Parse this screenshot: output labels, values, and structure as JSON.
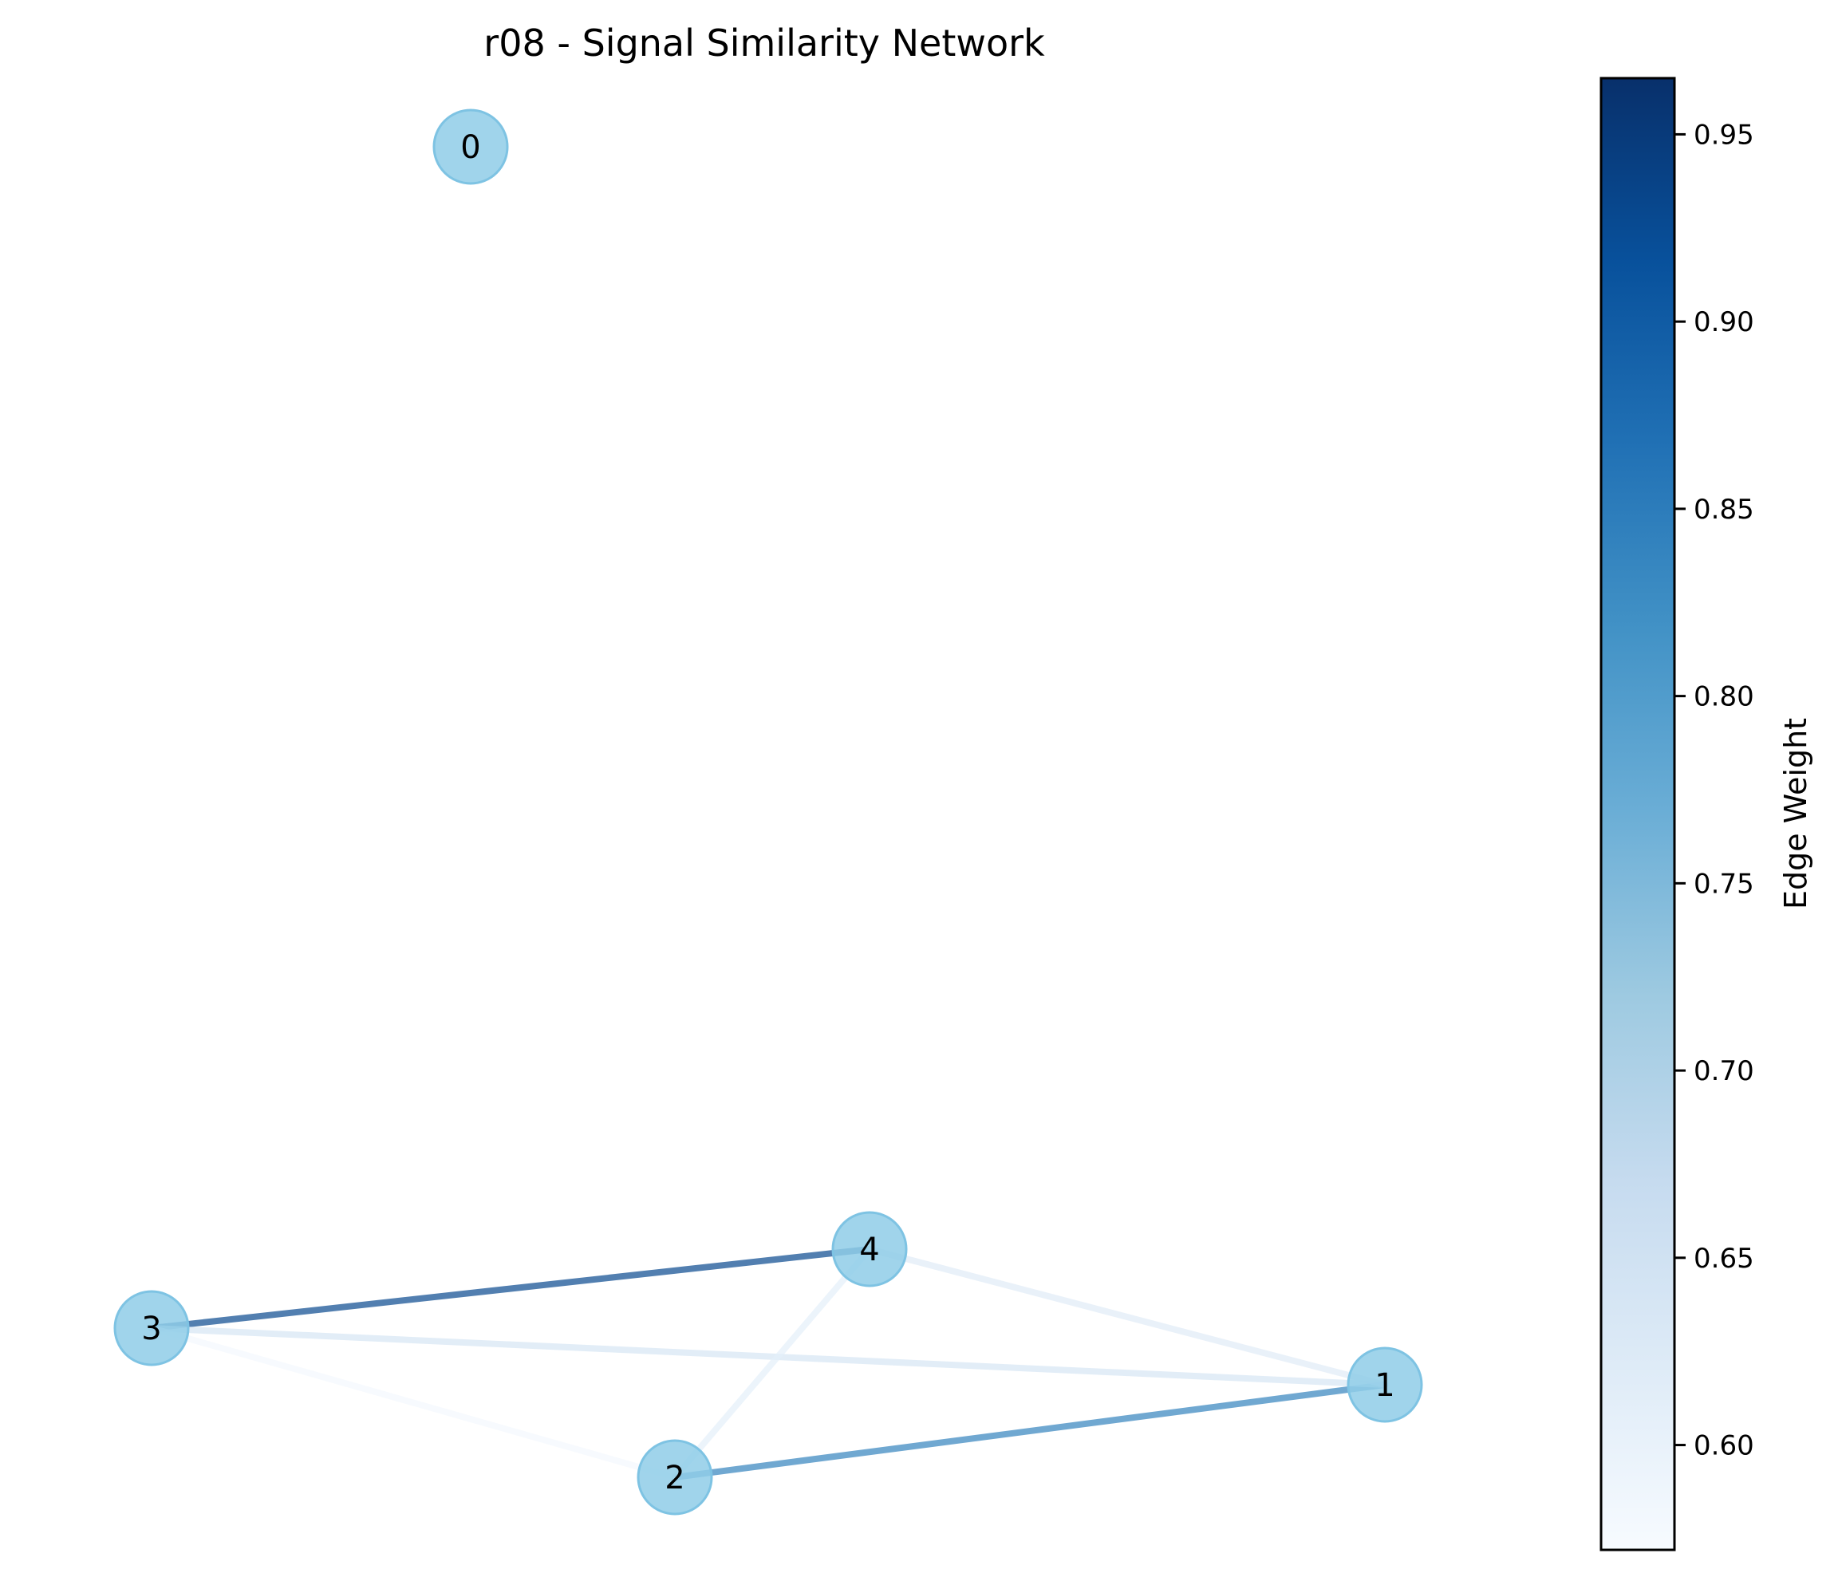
{
  "title": "r08 - Signal Similarity Network",
  "colors": {
    "node_fill": "#8fcde8",
    "node_stroke": "#7ec3e3",
    "background": "#ffffff"
  },
  "chart_data": {
    "type": "network",
    "nodes": [
      {
        "id": "0",
        "label": "0"
      },
      {
        "id": "1",
        "label": "1"
      },
      {
        "id": "2",
        "label": "2"
      },
      {
        "id": "3",
        "label": "3"
      },
      {
        "id": "4",
        "label": "4"
      }
    ],
    "edges": [
      {
        "source": "3",
        "target": "4",
        "weight": 0.93
      },
      {
        "source": "2",
        "target": "1",
        "weight": 0.84
      },
      {
        "source": "3",
        "target": "1",
        "weight": 0.64
      },
      {
        "source": "4",
        "target": "1",
        "weight": 0.62
      },
      {
        "source": "2",
        "target": "4",
        "weight": 0.61
      },
      {
        "source": "3",
        "target": "2",
        "weight": 0.58
      }
    ],
    "colorbar": {
      "label": "Edge Weight",
      "vmin": 0.572,
      "vmax": 0.965,
      "ticks": [
        "0.60",
        "0.65",
        "0.70",
        "0.75",
        "0.80",
        "0.85",
        "0.90",
        "0.95"
      ],
      "colormap": "Blues"
    }
  }
}
